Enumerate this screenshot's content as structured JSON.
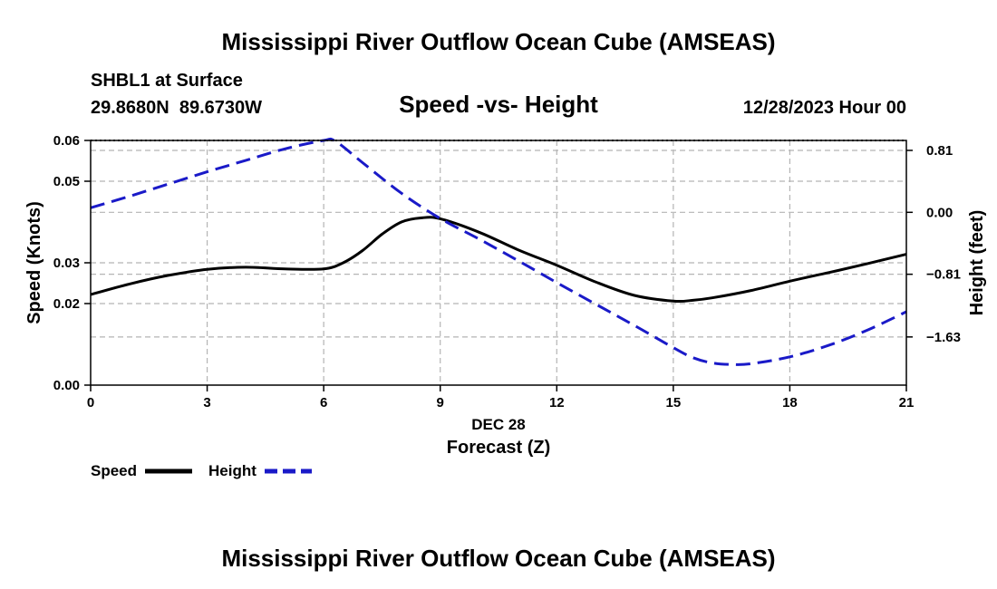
{
  "page": {
    "title": "Mississippi River Outflow Ocean Cube (AMSEAS)",
    "station": "SHBL1 at Surface",
    "coords": "29.8680N  89.6730W",
    "subtitle": "Speed -vs- Height",
    "datetime": "12/28/2023 Hour 00",
    "footer_title": "Mississippi River Outflow Ocean Cube (AMSEAS)"
  },
  "chart_data": {
    "type": "line",
    "title": "Speed -vs- Height",
    "xlabel_top": "DEC 28",
    "xlabel": "Forecast (Z)",
    "ylabel_left": "Speed (Knots)",
    "ylabel_right": "Height (feet)",
    "xlim": [
      0,
      21
    ],
    "ylim_left": [
      0,
      0.06
    ],
    "ylim_right": [
      -2.26,
      0.94
    ],
    "x_ticks": [
      0,
      3,
      6,
      9,
      12,
      15,
      18,
      21
    ],
    "x_tick_labels": [
      "0",
      "3",
      "6",
      "9",
      "12",
      "15",
      "18",
      "21"
    ],
    "y_left_ticks": [
      0,
      0.02,
      0.03,
      0.05,
      0.06
    ],
    "y_left_tick_labels": [
      "0.00",
      "0.02",
      "0.03",
      "0.05",
      "0.06"
    ],
    "y_right_ticks": [
      0.81,
      0.0,
      -0.81,
      -1.63
    ],
    "y_right_tick_labels": [
      "0.81",
      "0.00",
      "−0.81",
      "−1.63"
    ],
    "grid": true,
    "legend": [
      "Speed",
      "Height"
    ],
    "legend_position": "bottom-left",
    "series": [
      {
        "name": "Speed",
        "axis": "left",
        "color": "#000000",
        "style": "solid",
        "x": [
          0,
          1,
          2,
          3,
          4,
          5,
          6,
          6.5,
          7,
          7.5,
          8,
          8.5,
          9,
          10,
          11,
          12,
          13,
          14,
          15,
          15.5,
          16,
          17,
          18,
          19,
          20,
          21
        ],
        "values": [
          0.0222,
          0.0248,
          0.0269,
          0.0284,
          0.0289,
          0.0285,
          0.0285,
          0.03,
          0.033,
          0.037,
          0.04,
          0.041,
          0.0408,
          0.0375,
          0.0332,
          0.0294,
          0.0253,
          0.022,
          0.0206,
          0.0208,
          0.0214,
          0.0232,
          0.0255,
          0.0276,
          0.0298,
          0.0321
        ]
      },
      {
        "name": "Height",
        "axis": "right",
        "color": "#1a1ac8",
        "style": "dashed",
        "x": [
          0,
          1,
          2,
          3,
          4,
          5,
          6,
          6.3,
          7,
          8,
          9,
          10,
          11,
          12,
          13,
          14,
          15,
          15.5,
          16,
          16.5,
          17,
          18,
          19,
          20,
          21
        ],
        "values": [
          0.06,
          0.21,
          0.37,
          0.53,
          0.68,
          0.83,
          0.94,
          0.93,
          0.65,
          0.25,
          -0.08,
          -0.35,
          -0.63,
          -0.92,
          -1.2,
          -1.48,
          -1.77,
          -1.9,
          -1.97,
          -1.99,
          -1.98,
          -1.89,
          -1.74,
          -1.54,
          -1.3
        ]
      }
    ]
  }
}
